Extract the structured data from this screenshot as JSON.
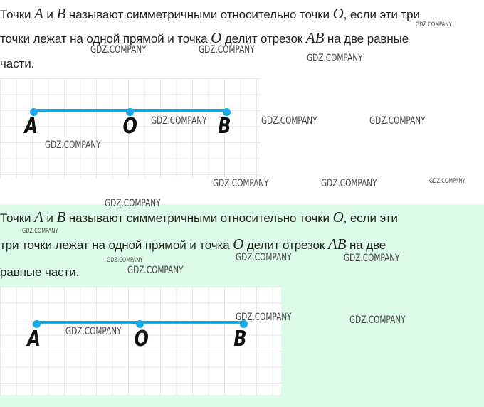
{
  "paragraph1": {
    "l1a": "Точки ",
    "A": "A",
    "l1b": " и ",
    "B": "B",
    "l1c": " называют симметричными относительно точки ",
    "O": "O",
    "l1d": ", если эти три",
    "l2a": "точки лежат на одной прямой и точка ",
    "l2b": " делит отрезок ",
    "AB": "AB",
    "l2c": " на две равные",
    "l3": "части."
  },
  "paragraph2": {
    "l1a": "Точки ",
    "A": "A",
    "l1b": " и ",
    "B": "B",
    "l1c": " называют симметричными относительно точки ",
    "O": "O",
    "l1d": ", если эти",
    "l2a": "три точки лежат на одной прямой и точка ",
    "l2b": " делит отрезок ",
    "AB": "AB",
    "l2c": " на две",
    "l3": "равные части."
  },
  "figure": {
    "point_a": "A",
    "point_o": "O",
    "point_b": "B",
    "color": "#19a9e6"
  },
  "watermark": "GDZ.COMPANY"
}
